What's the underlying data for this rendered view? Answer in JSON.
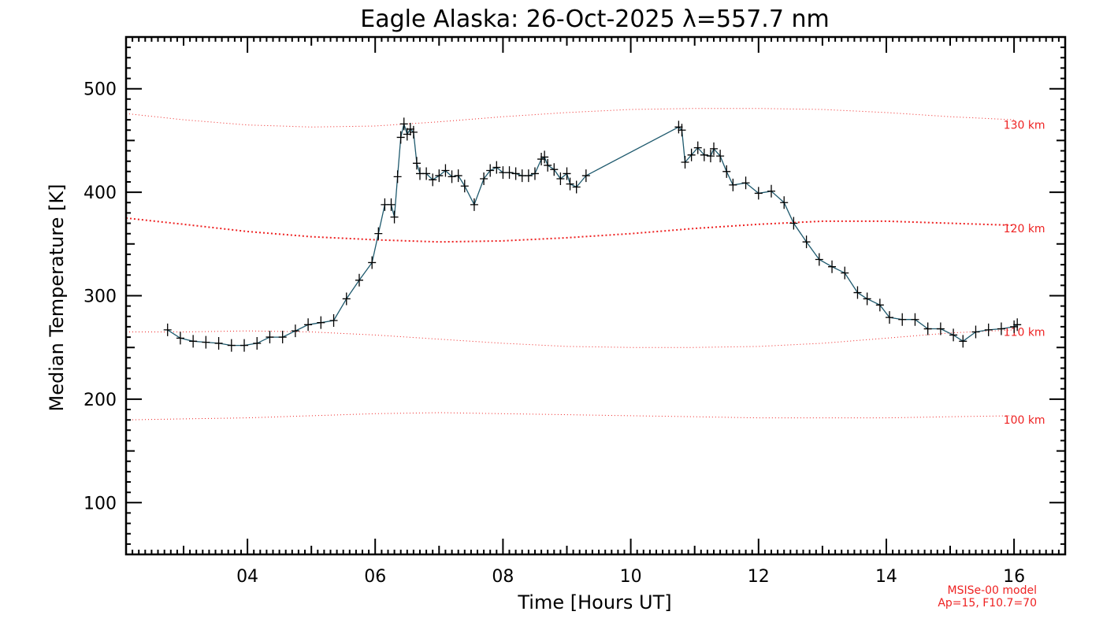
{
  "chart_data": {
    "type": "line",
    "title": "Eagle Alaska: 26-Oct-2025 λ=557.7 nm",
    "xlabel": "Time [Hours UT]",
    "ylabel": "Median Temperature [K]",
    "xlim": [
      2.1,
      16.8
    ],
    "ylim": [
      50,
      550
    ],
    "xticks": [
      4,
      6,
      8,
      10,
      12,
      14,
      16
    ],
    "xtick_labels": [
      "04",
      "06",
      "08",
      "10",
      "12",
      "14",
      "16"
    ],
    "yticks": [
      100,
      200,
      300,
      400,
      500
    ],
    "ytick_labels": [
      "100",
      "200",
      "300",
      "400",
      "500"
    ],
    "colors": {
      "data_line": "#1f5a6e",
      "markers": "#000000",
      "model": "#ee2222"
    },
    "series": [
      {
        "name": "Median Temperature",
        "x": [
          2.75,
          2.95,
          3.15,
          3.35,
          3.55,
          3.75,
          3.95,
          4.15,
          4.35,
          4.55,
          4.75,
          4.95,
          5.15,
          5.35,
          5.55,
          5.75,
          5.95,
          6.05,
          6.15,
          6.25,
          6.3,
          6.35,
          6.4,
          6.45,
          6.5,
          6.55,
          6.6,
          6.65,
          6.7,
          6.8,
          6.9,
          7.0,
          7.1,
          7.2,
          7.3,
          7.4,
          7.55,
          7.7,
          7.8,
          7.9,
          8.0,
          8.1,
          8.2,
          8.3,
          8.4,
          8.5,
          8.6,
          8.65,
          8.7,
          8.8,
          8.9,
          9.0,
          9.05,
          9.15,
          9.3,
          10.75,
          10.8,
          10.85,
          10.95,
          11.05,
          11.15,
          11.25,
          11.3,
          11.4,
          11.5,
          11.6,
          11.8,
          12.0,
          12.2,
          12.4,
          12.55,
          12.75,
          12.95,
          13.15,
          13.35,
          13.55,
          13.7,
          13.9,
          14.05,
          14.25,
          14.45,
          14.65,
          14.85,
          15.05,
          15.2,
          15.4,
          15.6,
          15.8,
          16.0,
          16.05
        ],
        "values": [
          267,
          259,
          256,
          255,
          254,
          252,
          252,
          254,
          260,
          260,
          266,
          272,
          274,
          276,
          297,
          315,
          332,
          360,
          388,
          388,
          376,
          415,
          453,
          466,
          456,
          461,
          458,
          428,
          418,
          418,
          412,
          416,
          421,
          415,
          416,
          406,
          388,
          413,
          421,
          424,
          419,
          419,
          418,
          416,
          416,
          418,
          432,
          434,
          426,
          422,
          413,
          418,
          408,
          405,
          416,
          463,
          460,
          429,
          436,
          443,
          436,
          435,
          442,
          435,
          420,
          407,
          409,
          399,
          401,
          390,
          370,
          352,
          335,
          328,
          322,
          303,
          297,
          291,
          279,
          277,
          277,
          268,
          268,
          262,
          256,
          265,
          267,
          268,
          270,
          272
        ]
      }
    ],
    "model_curves": [
      {
        "label": "130 km",
        "x": [
          2.1,
          3.0,
          4.0,
          5.0,
          6.0,
          7.0,
          8.0,
          9.0,
          10.0,
          11.0,
          12.0,
          13.0,
          14.0,
          15.0,
          16.0
        ],
        "values": [
          476,
          470,
          465,
          463,
          464,
          468,
          473,
          477,
          480,
          481,
          481,
          480,
          477,
          473,
          470
        ]
      },
      {
        "label": "120 km",
        "x": [
          2.1,
          3.0,
          4.0,
          5.0,
          6.0,
          7.0,
          8.0,
          9.0,
          10.0,
          11.0,
          12.0,
          13.0,
          14.0,
          15.0,
          16.0
        ],
        "values": [
          375,
          369,
          362,
          357,
          354,
          352,
          353,
          356,
          360,
          365,
          369,
          372,
          372,
          370,
          368
        ]
      },
      {
        "label": "110 km",
        "x": [
          2.1,
          3.0,
          4.0,
          5.0,
          6.0,
          7.0,
          8.0,
          9.0,
          10.0,
          11.0,
          12.0,
          13.0,
          14.0,
          15.0,
          16.0
        ],
        "values": [
          265,
          265,
          266,
          265,
          262,
          258,
          254,
          251,
          250,
          250,
          251,
          254,
          259,
          264,
          267
        ]
      },
      {
        "label": "100 km",
        "x": [
          2.1,
          3.0,
          4.0,
          5.0,
          6.0,
          7.0,
          8.0,
          9.0,
          10.0,
          11.0,
          12.0,
          13.0,
          14.0,
          15.0,
          16.0
        ],
        "values": [
          180,
          181,
          182,
          184,
          186,
          187,
          186,
          185,
          184,
          183,
          182,
          182,
          182,
          183,
          184
        ]
      }
    ],
    "model_label_x": 16.0,
    "model_label_values": [
      465,
      365,
      265,
      180
    ],
    "annotation": {
      "line1": "MSISe-00 model",
      "line2": "Ap=15, F10.7=70"
    },
    "grid": false,
    "legend": "none"
  }
}
